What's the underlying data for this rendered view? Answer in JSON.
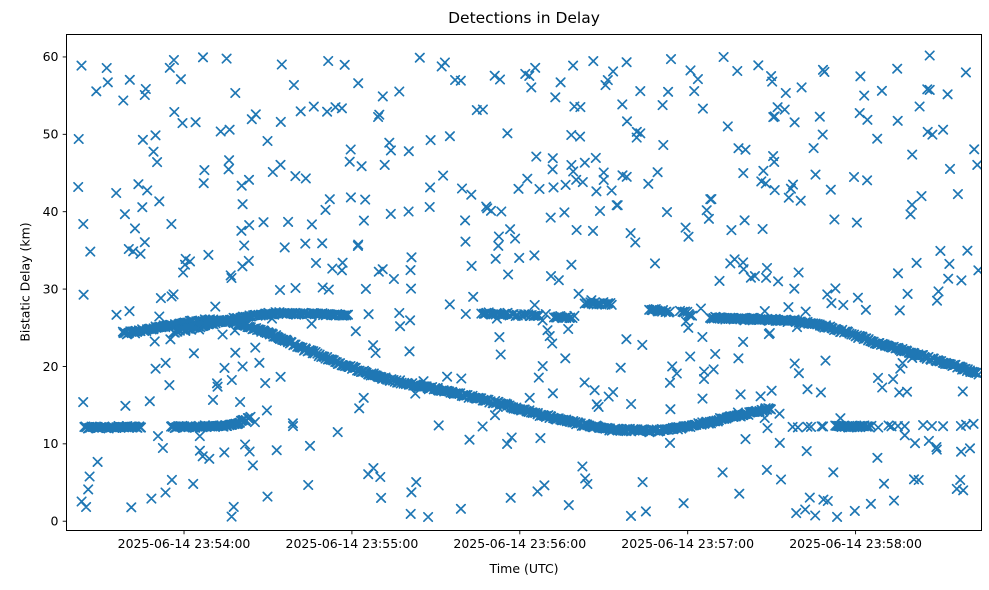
{
  "figure": {
    "title": "Detections in Delay",
    "xlabel": "Time (UTC)",
    "ylabel": "Bistatic Delay (km)"
  },
  "chart_data": {
    "type": "scatter",
    "title": "Detections in Delay",
    "xlabel": "Time (UTC)",
    "ylabel": "Bistatic Delay (km)",
    "legend": "none",
    "grid": false,
    "marker": {
      "shape": "x",
      "color": "#1f77b4",
      "half_size_px": 4.2,
      "stroke_px": 1.7
    },
    "x_axis": {
      "origin_time": "2025-06-14 23:53:18",
      "span_s": 327,
      "tick_offsets_s": [
        42,
        102,
        162,
        222,
        282
      ],
      "tick_labels": [
        "2025-06-14 23:54:00",
        "2025-06-14 23:55:00",
        "2025-06-14 23:56:00",
        "2025-06-14 23:57:00",
        "2025-06-14 23:58:00"
      ]
    },
    "y_axis": {
      "min": -1.2,
      "max": 62.9,
      "ticks": [
        0,
        10,
        20,
        30,
        40,
        50,
        60
      ]
    },
    "series": [
      {
        "name": "target-pass-main",
        "kind": "dense-track",
        "points_per_s": 2.3,
        "jitter_km": 0.16,
        "control_points": [
          [
            20,
            24.2
          ],
          [
            35,
            25.2
          ],
          [
            50,
            26.0
          ],
          [
            60,
            25.7
          ],
          [
            70,
            24.6
          ],
          [
            83,
            22.6
          ],
          [
            98,
            20.3
          ],
          [
            115,
            18.3
          ],
          [
            134,
            16.9
          ],
          [
            155,
            15.2
          ],
          [
            171,
            13.6
          ],
          [
            183,
            12.6
          ],
          [
            195,
            11.85
          ],
          [
            205,
            11.7
          ],
          [
            213,
            11.75
          ],
          [
            222,
            12.2
          ],
          [
            232,
            13.0
          ],
          [
            242,
            13.8
          ],
          [
            252,
            14.6
          ]
        ]
      },
      {
        "name": "target-pass-upper-left",
        "kind": "dense-track",
        "points_per_s": 2.0,
        "jitter_km": 0.15,
        "control_points": [
          [
            38,
            24.4
          ],
          [
            50,
            25.4
          ],
          [
            62,
            26.3
          ],
          [
            72,
            26.8
          ],
          [
            85,
            26.9
          ],
          [
            101,
            26.6
          ]
        ]
      },
      {
        "name": "flat-12km-left-a",
        "kind": "dense-track",
        "points_per_s": 2.2,
        "jitter_km": 0.13,
        "control_points": [
          [
            6,
            12.1
          ],
          [
            27,
            12.2
          ]
        ]
      },
      {
        "name": "flat-12km-left-b",
        "kind": "dense-track",
        "points_per_s": 2.2,
        "jitter_km": 0.13,
        "control_points": [
          [
            37,
            12.15
          ],
          [
            55,
            12.3
          ],
          [
            61,
            12.55
          ],
          [
            64,
            13.1
          ],
          [
            66,
            13.6
          ]
        ]
      },
      {
        "name": "target-pass-right",
        "kind": "dense-track",
        "points_per_s": 2.3,
        "jitter_km": 0.15,
        "control_points": [
          [
            230,
            26.3
          ],
          [
            247,
            26.1
          ],
          [
            258,
            25.9
          ],
          [
            268,
            25.5
          ],
          [
            278,
            24.5
          ],
          [
            290,
            23.0
          ],
          [
            305,
            21.4
          ],
          [
            315,
            20.4
          ],
          [
            326,
            19.1
          ]
        ]
      },
      {
        "name": "flat-12km-right-dense",
        "kind": "dense-track",
        "points_per_s": 2.2,
        "jitter_km": 0.12,
        "control_points": [
          [
            275,
            12.25
          ],
          [
            287,
            12.25
          ]
        ]
      },
      {
        "name": "flat-12km-right-sparse",
        "kind": "dense-track",
        "points_per_s": 0.4,
        "jitter_km": 0.12,
        "control_points": [
          [
            258,
            12.2
          ],
          [
            302,
            12.3
          ]
        ]
      },
      {
        "name": "flat-12km-far-right-sparse",
        "kind": "dense-track",
        "points_per_s": 0.25,
        "jitter_km": 0.12,
        "control_points": [
          [
            305,
            12.3
          ],
          [
            325,
            12.35
          ]
        ]
      },
      {
        "name": "blob-27km-a",
        "kind": "dense-track",
        "points_per_s": 1.6,
        "jitter_km": 0.14,
        "control_points": [
          [
            148,
            26.9
          ],
          [
            160,
            26.7
          ],
          [
            169,
            26.6
          ]
        ]
      },
      {
        "name": "blob-26km-b",
        "kind": "dense-track",
        "points_per_s": 1.8,
        "jitter_km": 0.13,
        "control_points": [
          [
            174,
            26.4
          ],
          [
            181,
            26.35
          ]
        ]
      },
      {
        "name": "blob-28km",
        "kind": "dense-track",
        "points_per_s": 2.0,
        "jitter_km": 0.13,
        "control_points": [
          [
            185,
            28.2
          ],
          [
            195,
            28.1
          ]
        ]
      },
      {
        "name": "blob-27km-c",
        "kind": "dense-track",
        "points_per_s": 1.8,
        "jitter_km": 0.14,
        "control_points": [
          [
            208,
            27.4
          ],
          [
            216,
            27.05
          ]
        ]
      },
      {
        "name": "blob-27km-d",
        "kind": "dense-track",
        "points_per_s": 1.6,
        "jitter_km": 0.18,
        "control_points": [
          [
            219,
            27.3
          ],
          [
            224,
            26.6
          ]
        ]
      },
      {
        "name": "clutter",
        "kind": "random-uniform",
        "count": 540,
        "t_range": [
          4,
          326
        ],
        "delay_range": [
          0.4,
          60.3
        ],
        "seed": 7
      }
    ]
  }
}
